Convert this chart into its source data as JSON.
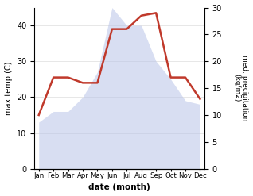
{
  "months": [
    "Jan",
    "Feb",
    "Mar",
    "Apr",
    "May",
    "Jun",
    "Jul",
    "Aug",
    "Sep",
    "Oct",
    "Nov",
    "Dec"
  ],
  "temp": [
    13,
    16,
    16,
    20,
    27,
    45,
    40,
    40,
    30,
    25,
    19,
    18
  ],
  "precip": [
    10,
    17,
    17,
    16,
    16,
    26,
    26,
    28.5,
    29,
    17,
    17,
    13
  ],
  "temp_fill_color": "#b8c4e8",
  "precip_color": "#c0392b",
  "ylabel_left": "max temp (C)",
  "ylabel_right": "med. precipitation\n(kg/m2)",
  "xlabel": "date (month)",
  "ylim_left": [
    0,
    45
  ],
  "ylim_right": [
    0,
    30
  ],
  "yticks_left": [
    0,
    10,
    20,
    30,
    40
  ],
  "yticks_right": [
    0,
    5,
    10,
    15,
    20,
    25,
    30
  ],
  "fill_alpha": 0.55,
  "line_width": 1.8,
  "bg_color": "#ffffff"
}
